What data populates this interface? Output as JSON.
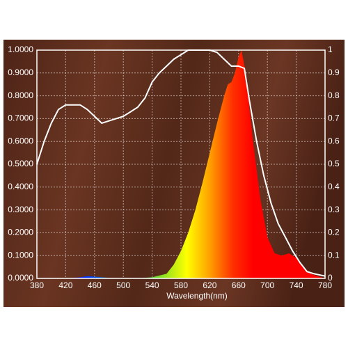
{
  "chart_data": {
    "type": "line",
    "x_label": "Wavelength(nm)",
    "xlim": [
      380,
      780
    ],
    "xticks": [
      380,
      420,
      460,
      500,
      540,
      580,
      620,
      660,
      700,
      740,
      780
    ],
    "ylim": [
      0,
      1
    ],
    "yticks": [
      {
        "value": 0,
        "label": "0.0000"
      },
      {
        "value": 0.1,
        "label": "0.1000"
      },
      {
        "value": 0.2,
        "label": "0.2000"
      },
      {
        "value": 0.3,
        "label": "0.3000"
      },
      {
        "value": 0.4,
        "label": "0.4000"
      },
      {
        "value": 0.5,
        "label": "0.5000"
      },
      {
        "value": 0.6,
        "label": "0.6000"
      },
      {
        "value": 0.7,
        "label": "0.7000"
      },
      {
        "value": 0.8,
        "label": "0.8000"
      },
      {
        "value": 0.9,
        "label": "0.9000"
      },
      {
        "value": 1,
        "label": "1.0000"
      }
    ],
    "y2lim": [
      0,
      1
    ],
    "y2ticks": [
      0,
      0.1,
      0.2,
      0.3,
      0.4,
      0.5,
      0.6,
      0.7,
      0.8,
      0.9,
      1
    ],
    "grid": true,
    "series": [
      {
        "type": "area",
        "axis": "y",
        "x": [
          380,
          400,
          420,
          440,
          450,
          460,
          480,
          500,
          520,
          540,
          560,
          570,
          580,
          590,
          600,
          610,
          620,
          630,
          640,
          645,
          650,
          655,
          660,
          664,
          670,
          680,
          690,
          700,
          710,
          720,
          730,
          740,
          750,
          760,
          770,
          780
        ],
        "values": [
          0,
          0,
          0,
          0.005,
          0.01,
          0.008,
          0.002,
          0,
          0,
          0.005,
          0.02,
          0.06,
          0.12,
          0.2,
          0.3,
          0.42,
          0.55,
          0.68,
          0.8,
          0.85,
          0.86,
          0.9,
          0.97,
          1.0,
          0.9,
          0.6,
          0.35,
          0.18,
          0.11,
          0.1,
          0.11,
          0.09,
          0.05,
          0.02,
          0.01,
          0
        ]
      },
      {
        "type": "line",
        "axis": "y2",
        "color": "#ffffff",
        "x": [
          380,
          390,
          400,
          410,
          420,
          440,
          450,
          460,
          470,
          480,
          490,
          500,
          510,
          520,
          530,
          540,
          550,
          560,
          570,
          580,
          590,
          600,
          610,
          620,
          630,
          640,
          650,
          660,
          668,
          675,
          685,
          695,
          705,
          715,
          725,
          735,
          745,
          755,
          765,
          780
        ],
        "values": [
          0.5,
          0.6,
          0.68,
          0.74,
          0.76,
          0.76,
          0.74,
          0.71,
          0.68,
          0.69,
          0.7,
          0.71,
          0.73,
          0.75,
          0.79,
          0.86,
          0.9,
          0.93,
          0.96,
          0.98,
          1.0,
          1.0,
          1.0,
          1.0,
          0.99,
          0.96,
          0.93,
          0.93,
          0.92,
          0.78,
          0.6,
          0.45,
          0.33,
          0.24,
          0.18,
          0.12,
          0.07,
          0.03,
          0.02,
          0.01
        ]
      }
    ]
  }
}
